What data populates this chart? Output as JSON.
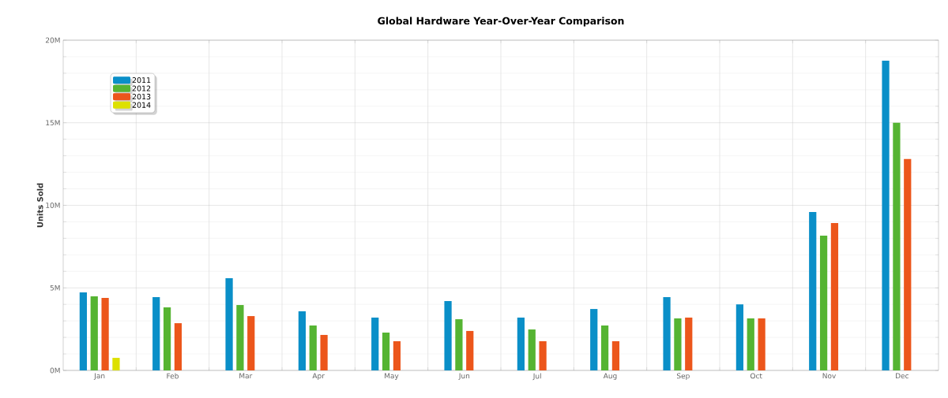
{
  "chart_data": {
    "type": "bar",
    "title": "Global Hardware Year-Over-Year Comparison",
    "ylabel": "Units Sold",
    "categories": [
      "Jan",
      "Feb",
      "Mar",
      "Apr",
      "May",
      "Jun",
      "Jul",
      "Aug",
      "Sep",
      "Oct",
      "Nov",
      "Dec"
    ],
    "series": [
      {
        "name": "2011",
        "color": "#0a8fc8",
        "values": [
          4.73,
          4.44,
          5.58,
          3.58,
          3.2,
          4.2,
          3.2,
          3.72,
          4.44,
          4.0,
          9.6,
          18.76
        ]
      },
      {
        "name": "2012",
        "color": "#55b432",
        "values": [
          4.49,
          3.82,
          3.96,
          2.72,
          2.29,
          3.1,
          2.48,
          2.72,
          3.15,
          3.15,
          8.16,
          15.0
        ]
      },
      {
        "name": "2013",
        "color": "#ec561b",
        "values": [
          4.39,
          2.86,
          3.29,
          2.15,
          1.77,
          2.39,
          1.77,
          1.77,
          3.2,
          3.15,
          8.93,
          12.8
        ]
      },
      {
        "name": "2014",
        "color": "#dde000",
        "values": [
          0.76,
          null,
          null,
          null,
          null,
          null,
          null,
          null,
          null,
          null,
          null,
          null
        ]
      }
    ],
    "ylim": [
      0,
      20
    ],
    "yticks": [
      {
        "value": 0,
        "label": "0M"
      },
      {
        "value": 5,
        "label": "5M"
      },
      {
        "value": 10,
        "label": "10M"
      },
      {
        "value": 15,
        "label": "15M"
      },
      {
        "value": 20,
        "label": "20M"
      }
    ],
    "grid": true,
    "legend": "top left"
  }
}
